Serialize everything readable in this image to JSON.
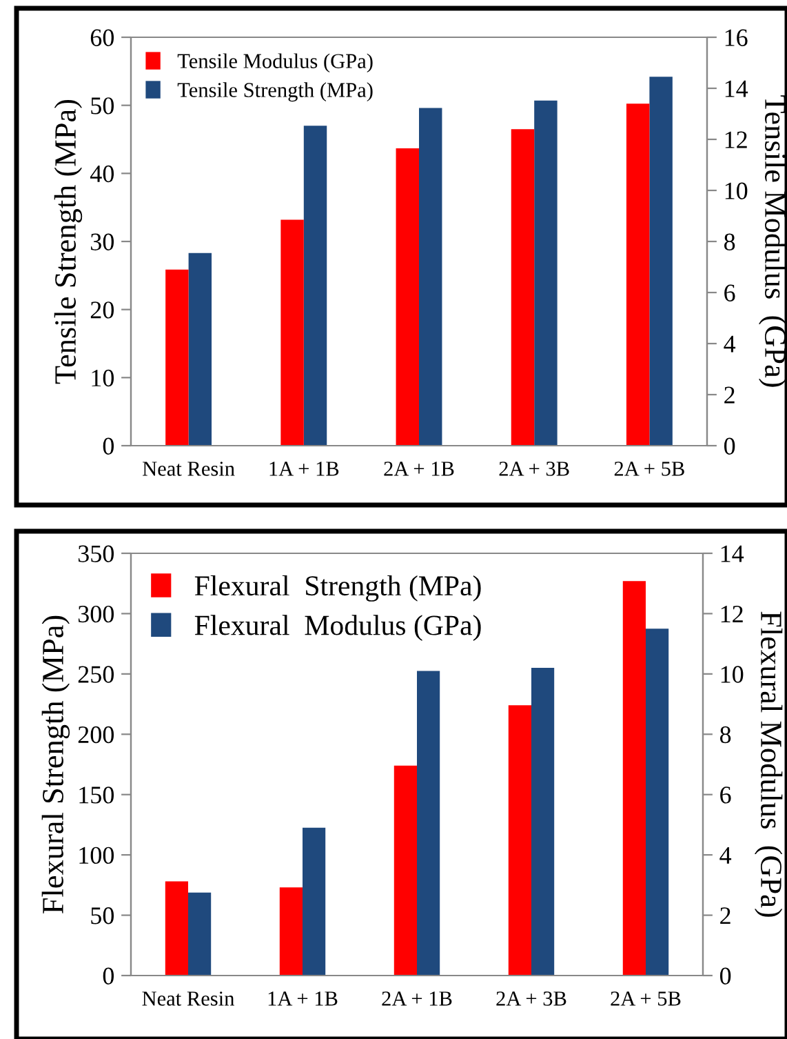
{
  "chart_data": [
    {
      "type": "bar",
      "categories": [
        "Neat Resin",
        "1A + 1B",
        "2A + 1B",
        "2A + 3B",
        "2A + 5B"
      ],
      "ylabel": "Tensile Strength (MPa)",
      "y2label": "Tensile Modulus  (GPa)",
      "ylim": [
        0,
        60
      ],
      "yticks": [
        0,
        10,
        20,
        30,
        40,
        50,
        60
      ],
      "y2lim": [
        0,
        16
      ],
      "y2ticks": [
        0,
        2,
        4,
        6,
        8,
        10,
        12,
        14,
        16
      ],
      "grid": false,
      "legend": "top left",
      "series": [
        {
          "name": "Tensile Modulus (GPa)",
          "color": "#ff0000",
          "axis": "y2",
          "values": [
            6.9,
            8.85,
            11.65,
            12.4,
            13.4
          ]
        },
        {
          "name": "Tensile Strength (MPa)",
          "color": "#1f497d",
          "values": [
            28.3,
            47,
            49.6,
            50.7,
            54.2
          ]
        }
      ]
    },
    {
      "type": "bar",
      "categories": [
        "Neat Resin",
        "1A + 1B",
        "2A + 1B",
        "2A + 3B",
        "2A + 5B"
      ],
      "ylabel": "Flexural Strength (MPa)",
      "y2label": "Flexural Modulus  (GPa)",
      "ylim": [
        0,
        350
      ],
      "yticks": [
        0,
        50,
        100,
        150,
        200,
        250,
        300,
        350
      ],
      "y2lim": [
        0,
        14
      ],
      "y2ticks": [
        0,
        2,
        4,
        6,
        8,
        10,
        12,
        14
      ],
      "grid": false,
      "legend": "top left",
      "series": [
        {
          "name": "Flexural  Strength (MPa)",
          "color": "#ff0000",
          "values": [
            78,
            73,
            174,
            224,
            327
          ]
        },
        {
          "name": "Flexural  Modulus (GPa)",
          "color": "#1f497d",
          "axis": "y2",
          "values": [
            2.75,
            4.9,
            10.1,
            10.2,
            11.5
          ]
        }
      ]
    }
  ]
}
